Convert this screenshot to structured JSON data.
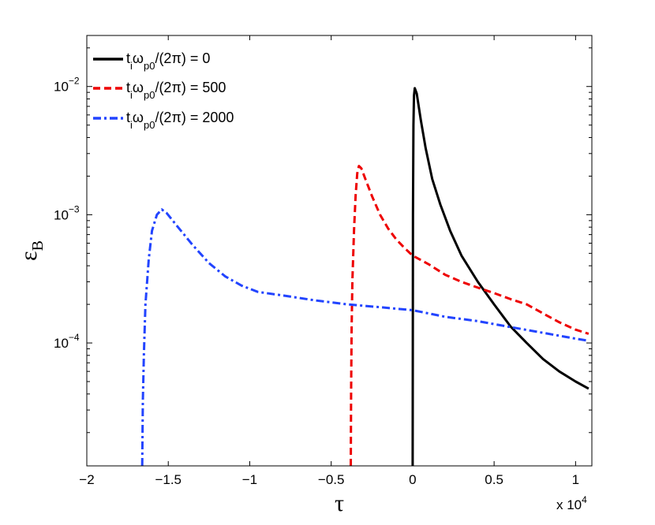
{
  "chart_data": {
    "type": "line",
    "y_scale": "log",
    "xlim": [
      -20000,
      11000
    ],
    "ylim": [
      1.1e-05,
      0.025
    ],
    "xlabel": "τ",
    "ylabel": {
      "main": "ε",
      "sub": "B"
    },
    "x_multiplier": {
      "text": "x 10",
      "exp": "4"
    },
    "x_ticks": [
      {
        "value": -20000,
        "label": "−2"
      },
      {
        "value": -15000,
        "label": "−1.5"
      },
      {
        "value": -10000,
        "label": "−1"
      },
      {
        "value": -5000,
        "label": "−0.5"
      },
      {
        "value": 0,
        "label": "0"
      },
      {
        "value": 5000,
        "label": "0.5"
      },
      {
        "value": 10000,
        "label": "1"
      }
    ],
    "y_ticks": [
      {
        "value": 0.01,
        "base": "10",
        "exp": "−2"
      },
      {
        "value": 0.001,
        "base": "10",
        "exp": "−3"
      },
      {
        "value": 0.0001,
        "base": "10",
        "exp": "−4"
      }
    ],
    "legend_position": "top-left",
    "series": [
      {
        "name": {
          "t": "t",
          "i": "i",
          "omega": "ω",
          "p0": "p0",
          "rest": "/(2π) = 0"
        },
        "color": "#000000",
        "style": "solid",
        "points": [
          [
            0,
            1.1e-05
          ],
          [
            10,
            0.0001
          ],
          [
            20,
            0.001
          ],
          [
            50,
            0.005
          ],
          [
            80,
            0.0085
          ],
          [
            130,
            0.0097
          ],
          [
            250,
            0.0088
          ],
          [
            500,
            0.0055
          ],
          [
            800,
            0.0033
          ],
          [
            1200,
            0.0019
          ],
          [
            1700,
            0.0012
          ],
          [
            2300,
            0.00075
          ],
          [
            3000,
            0.00048
          ],
          [
            4000,
            0.0003
          ],
          [
            5000,
            0.0002
          ],
          [
            6000,
            0.000135
          ],
          [
            7000,
            0.0001
          ],
          [
            8000,
            7.5e-05
          ],
          [
            9000,
            6e-05
          ],
          [
            10000,
            5e-05
          ],
          [
            10800,
            4.4e-05
          ]
        ]
      },
      {
        "name": {
          "t": "t",
          "i": "i",
          "omega": "ω",
          "p0": "p0",
          "rest": "/(2π) = 500"
        },
        "color": "#ee0000",
        "style": "dashed",
        "points": [
          [
            -3800,
            1.1e-05
          ],
          [
            -3780,
            4e-05
          ],
          [
            -3750,
            0.00012
          ],
          [
            -3700,
            0.0003
          ],
          [
            -3600,
            0.00075
          ],
          [
            -3500,
            0.0014
          ],
          [
            -3400,
            0.0021
          ],
          [
            -3300,
            0.0024
          ],
          [
            -3150,
            0.0023
          ],
          [
            -2900,
            0.0019
          ],
          [
            -2500,
            0.0014
          ],
          [
            -2000,
            0.001
          ],
          [
            -1500,
            0.00078
          ],
          [
            -1000,
            0.00064
          ],
          [
            -500,
            0.00055
          ],
          [
            0,
            0.00048
          ],
          [
            1000,
            0.00041
          ],
          [
            2000,
            0.00034
          ],
          [
            3000,
            0.0003
          ],
          [
            4000,
            0.00027
          ],
          [
            5000,
            0.000245
          ],
          [
            6000,
            0.00022
          ],
          [
            7000,
            0.0002
          ],
          [
            8000,
            0.00017
          ],
          [
            9000,
            0.000145
          ],
          [
            10000,
            0.000127
          ],
          [
            10800,
            0.000118
          ]
        ]
      },
      {
        "name": {
          "t": "t",
          "i": "i",
          "omega": "ω",
          "p0": "p0",
          "rest": "/(2π) = 2000"
        },
        "color": "#2244ff",
        "style": "dashdot",
        "points": [
          [
            -16600,
            1.1e-05
          ],
          [
            -16560,
            3.5e-05
          ],
          [
            -16500,
            8e-05
          ],
          [
            -16400,
            0.0002
          ],
          [
            -16200,
            0.00045
          ],
          [
            -16000,
            0.00075
          ],
          [
            -15700,
            0.001
          ],
          [
            -15400,
            0.0011
          ],
          [
            -15100,
            0.00103
          ],
          [
            -14500,
            0.00083
          ],
          [
            -13500,
            0.00058
          ],
          [
            -12500,
            0.00042
          ],
          [
            -11500,
            0.00033
          ],
          [
            -10500,
            0.00028
          ],
          [
            -9500,
            0.00025
          ],
          [
            -8000,
            0.000235
          ],
          [
            -6000,
            0.000215
          ],
          [
            -4000,
            0.0002
          ],
          [
            -2000,
            0.00019
          ],
          [
            0,
            0.00018
          ],
          [
            2000,
            0.00016
          ],
          [
            4000,
            0.000148
          ],
          [
            6000,
            0.000133
          ],
          [
            8000,
            0.00012
          ],
          [
            10000,
            0.000108
          ],
          [
            10800,
            0.000104
          ]
        ]
      }
    ]
  }
}
